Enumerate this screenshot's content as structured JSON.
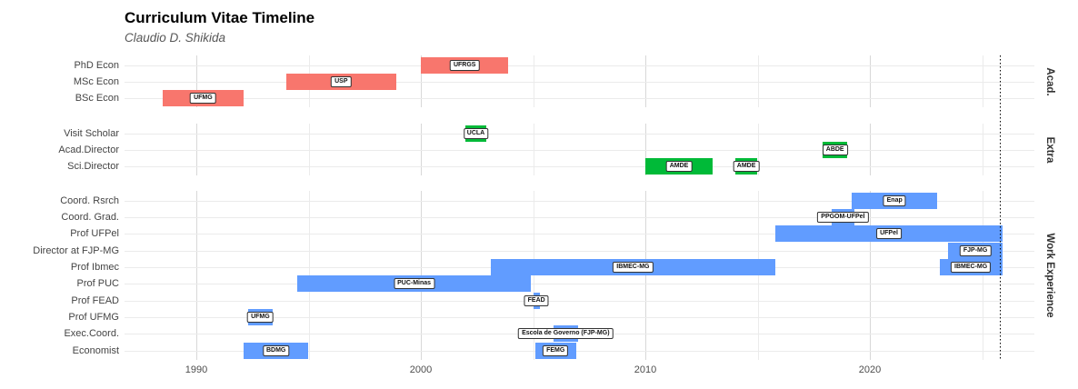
{
  "header": {
    "title": "Curriculum Vitae Timeline",
    "subtitle": "Claudio D. Shikida"
  },
  "chart_data": {
    "type": "gantt",
    "title": "Curriculum Vitae Timeline",
    "subtitle": "Claudio D. Shikida",
    "x_axis": {
      "tick_labels": [
        "1990",
        "2000",
        "2010",
        "2020"
      ],
      "tick_years": [
        1990,
        2000,
        2010,
        2020
      ],
      "minor_tick_years": [
        1995,
        2005,
        2015,
        2025
      ],
      "range_years": [
        1986.8,
        2027.3
      ],
      "grid": true
    },
    "today_line_year": 2025.8,
    "legend_position": "none",
    "facets": [
      {
        "label": "Acad.",
        "color": "#F8766D",
        "rows": [
          "PhD Econ",
          "MSc Econ",
          "BSc Econ"
        ],
        "bars": [
          {
            "row": "PhD Econ",
            "label": "UFRGS",
            "start": 2000.0,
            "end": 2003.9
          },
          {
            "row": "MSc Econ",
            "label": "USP",
            "start": 1994.0,
            "end": 1998.9
          },
          {
            "row": "BSc Econ",
            "label": "UFMG",
            "start": 1988.5,
            "end": 1992.1
          }
        ]
      },
      {
        "label": "Extra",
        "color": "#00BA38",
        "rows": [
          "Visit Scholar",
          "Acad.Director",
          "Sci.Director"
        ],
        "bars": [
          {
            "row": "Visit Scholar",
            "label": "UCLA",
            "start": 2002.0,
            "end": 2002.9
          },
          {
            "row": "Acad.Director",
            "label": "ABDE",
            "start": 2017.9,
            "end": 2019.0
          },
          {
            "row": "Sci.Director",
            "label": "AMDE",
            "start": 2010.0,
            "end": 2013.0
          },
          {
            "row": "Sci.Director",
            "label": "AMDE",
            "start": 2014.0,
            "end": 2015.0
          }
        ]
      },
      {
        "label": "Work Experience",
        "color": "#619CFF",
        "rows": [
          "Coord. Rsrch",
          "Coord. Grad.",
          "Prof UFPel",
          "Director at FJP-MG",
          "Prof Ibmec",
          "Prof PUC",
          "Prof FEAD",
          "Prof UFMG",
          "Exec.Coord.",
          "Economist"
        ],
        "bars": [
          {
            "row": "Coord. Rsrch",
            "label": "Enap",
            "start": 2019.2,
            "end": 2023.0
          },
          {
            "row": "Coord. Grad.",
            "label": "PPGOM-UFPel",
            "start": 2018.3,
            "end": 2019.3
          },
          {
            "row": "Prof UFPel",
            "label": "UFPel",
            "start": 2015.8,
            "end": 2025.9
          },
          {
            "row": "Director at FJP-MG",
            "label": "FJP-MG",
            "start": 2023.5,
            "end": 2025.9
          },
          {
            "row": "Prof Ibmec",
            "label": "IBMEC-MG",
            "start": 2003.1,
            "end": 2015.8
          },
          {
            "row": "Prof Ibmec",
            "label": "IBMEC-MG",
            "start": 2023.1,
            "end": 2025.9
          },
          {
            "row": "Prof PUC",
            "label": "PUC-Minas",
            "start": 1994.5,
            "end": 2004.9
          },
          {
            "row": "Prof FEAD",
            "label": "FEAD",
            "start": 2005.0,
            "end": 2005.3
          },
          {
            "row": "Prof UFMG",
            "label": "UFMG",
            "start": 1992.3,
            "end": 1993.4
          },
          {
            "row": "Exec.Coord.",
            "label": "Escola de Governo (FJP-MG)",
            "start": 2005.9,
            "end": 2007.0
          },
          {
            "row": "Economist",
            "label": "BDMG",
            "start": 1992.1,
            "end": 1995.0
          },
          {
            "row": "Economist",
            "label": "FEMG",
            "start": 2005.1,
            "end": 2006.9
          }
        ]
      }
    ]
  }
}
